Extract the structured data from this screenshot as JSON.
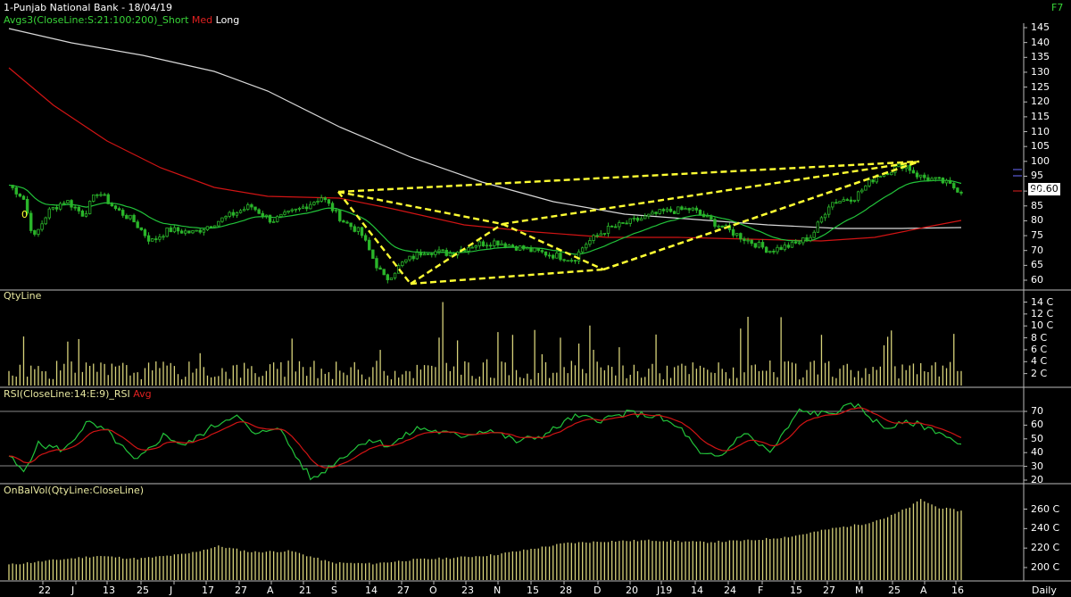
{
  "header": {
    "title": "1-Punjab National Bank - 18/04/19",
    "fkey": "F7",
    "avg_label": "Avgs3(CloseLine:S:21:100:200)_Short",
    "avg_med": "Med",
    "avg_long": "Long",
    "zero_marker": "0"
  },
  "colors": {
    "background": "#000000",
    "short_avg": "#22c33a",
    "med_avg": "#d11414",
    "long_avg": "#d9d9d9",
    "candles": "#2ab52a",
    "pattern": "#ffff33",
    "volume": "#d7d27a",
    "rsi": "#22c33a",
    "rsi_avg": "#d11414"
  },
  "price_panel": {
    "last_value": "90.60",
    "ticks": [
      "145",
      "140",
      "135",
      "130",
      "125",
      "120",
      "115",
      "110",
      "105",
      "100",
      "95",
      "90",
      "85",
      "80",
      "75",
      "70",
      "65",
      "60"
    ]
  },
  "qty_panel": {
    "label": "QtyLine",
    "ticks": [
      "14 C",
      "12 C",
      "10 C",
      "8 C",
      "6 C",
      "4 C",
      "2 C"
    ]
  },
  "rsi_panel": {
    "label": "RSI(CloseLine:14:E:9)_RSI",
    "avg_label": "Avg",
    "ticks": [
      "70",
      "60",
      "50",
      "40",
      "30",
      "20"
    ]
  },
  "obv_panel": {
    "label": "OnBalVol(QtyLine:CloseLine)",
    "ticks": [
      "260 C",
      "240 C",
      "220 C",
      "200 C"
    ]
  },
  "x_axis": {
    "labels": [
      "22",
      "J",
      "13",
      "25",
      "J",
      "17",
      "27",
      "A",
      "21",
      "S",
      "14",
      "27",
      "O",
      "23",
      "N",
      "15",
      "28",
      "D",
      "20",
      "J19",
      "14",
      "24",
      "F",
      "15",
      "27",
      "M",
      "25",
      "A",
      "16"
    ],
    "period": "Daily"
  }
}
